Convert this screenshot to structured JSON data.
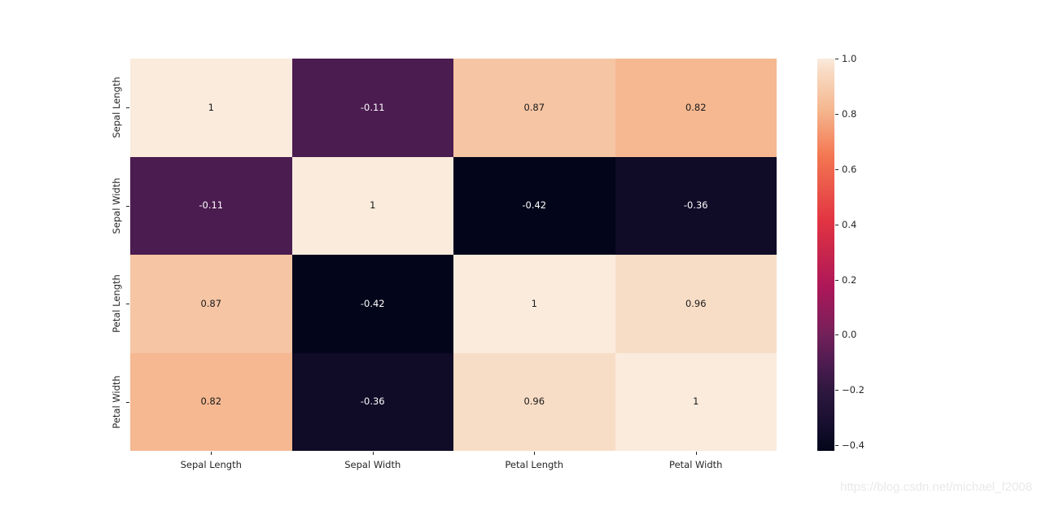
{
  "watermark": "https://blog.csdn.net/michael_f2008",
  "colors": {
    "background": "#ffffff",
    "tick_label": "#262626",
    "annotation_dark": "#1a1a1a",
    "annotation_light": "#ffffff",
    "watermark": "#e9e9ec"
  },
  "chart_data": {
    "type": "heatmap",
    "title": "",
    "xlabel": "",
    "ylabel": "",
    "categories": [
      "Sepal Length",
      "Sepal Width",
      "Petal Length",
      "Petal Width"
    ],
    "matrix": [
      [
        1,
        -0.11,
        0.87,
        0.82
      ],
      [
        -0.11,
        1,
        -0.42,
        -0.36
      ],
      [
        0.87,
        -0.42,
        1,
        0.96
      ],
      [
        0.82,
        -0.36,
        0.96,
        1
      ]
    ],
    "vmin": -0.42,
    "vmax": 1.0,
    "grid": false,
    "legend_position": "right-colorbar",
    "colorbar_tick_labels": [
      "1.0",
      "0.8",
      "0.6",
      "0.4",
      "0.2",
      "0.0",
      "−0.2",
      "−0.4"
    ],
    "colorbar_tick_values": [
      1.0,
      0.8,
      0.6,
      0.4,
      0.2,
      0.0,
      -0.2,
      -0.4
    ],
    "colormap_name": "rocket",
    "colormap_stops": [
      [
        0.0,
        "#03051A"
      ],
      [
        0.06,
        "#150E2D"
      ],
      [
        0.15,
        "#2D173E"
      ],
      [
        0.22,
        "#4C1C50"
      ],
      [
        0.3,
        "#75205A"
      ],
      [
        0.417,
        "#AD1759"
      ],
      [
        0.583,
        "#E13342"
      ],
      [
        0.75,
        "#F37651"
      ],
      [
        0.87,
        "#F5B78F"
      ],
      [
        0.97,
        "#F8DCC5"
      ],
      [
        1.0,
        "#FAEBDD"
      ]
    ]
  }
}
